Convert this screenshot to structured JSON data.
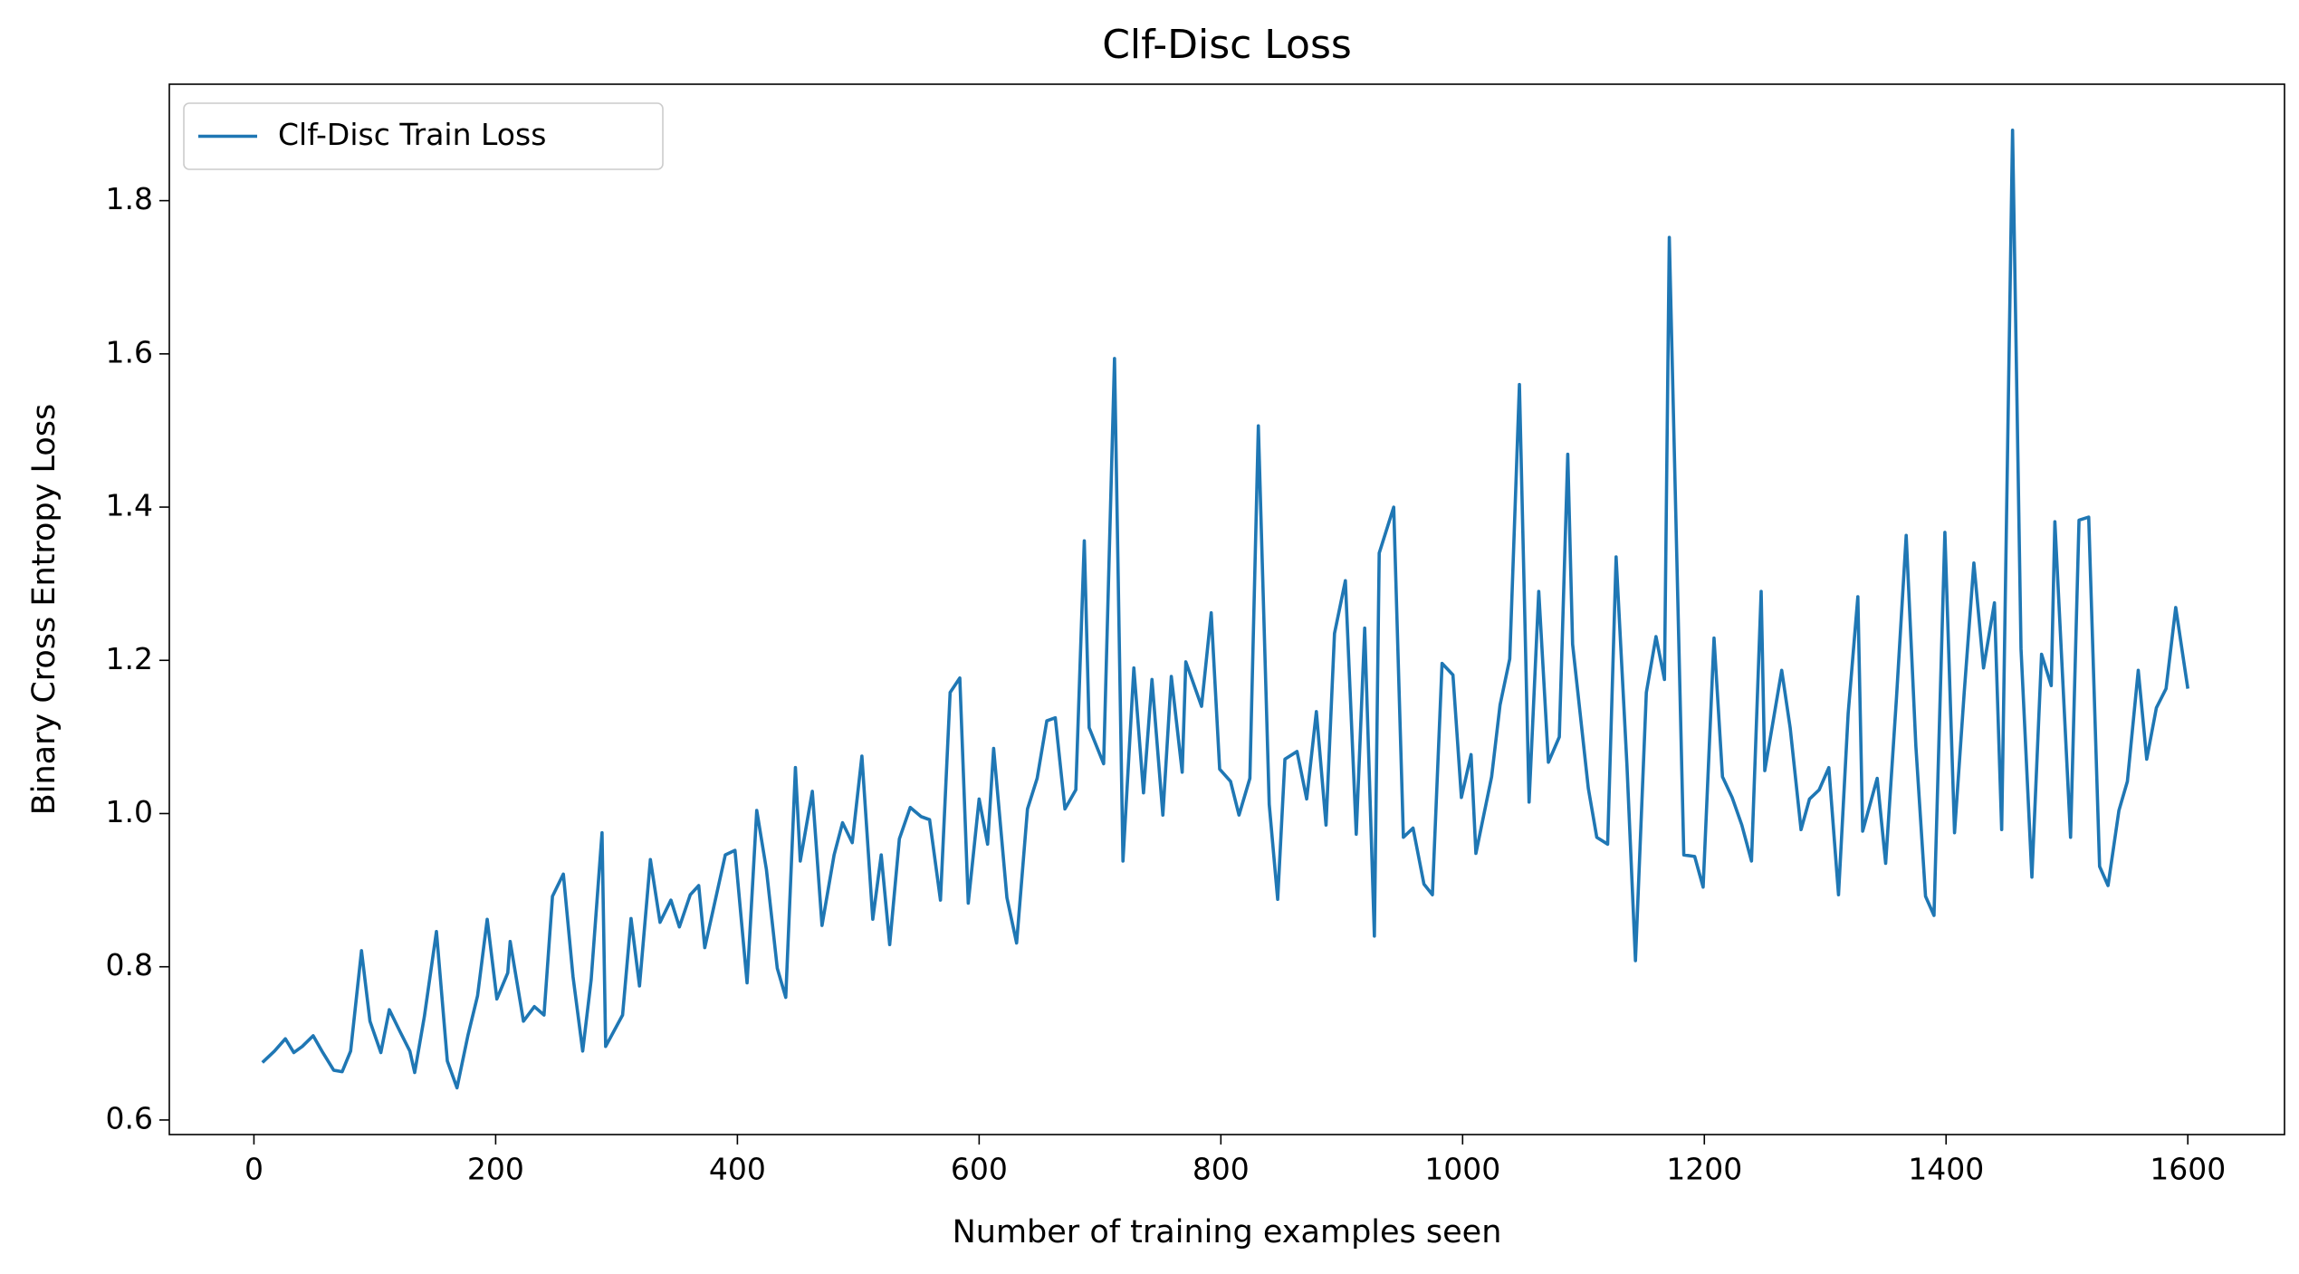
{
  "chart_data": {
    "type": "line",
    "title": "Clf-Disc Loss",
    "x_label": "Number of training examples seen",
    "y_label": "Binary Cross Entropy Loss",
    "x": [
      7,
      17,
      26,
      33,
      40,
      49,
      57,
      66,
      73,
      80,
      89,
      96,
      105,
      112,
      121,
      129,
      133,
      141,
      151,
      160,
      168,
      177,
      185,
      193,
      201,
      210,
      212,
      223,
      232,
      240,
      247,
      256,
      264,
      272,
      279,
      288,
      291,
      305,
      312,
      319,
      328,
      336,
      345,
      352,
      361,
      368,
      373,
      390,
      398,
      408,
      416,
      424,
      433,
      440,
      448,
      452,
      462,
      470,
      480,
      487,
      495,
      503,
      512,
      519,
      526,
      534,
      543,
      552,
      559,
      568,
      576,
      584,
      591,
      600,
      607,
      612,
      623,
      631,
      640,
      648,
      656,
      663,
      671,
      680,
      687,
      691,
      703,
      712,
      719,
      728,
      736,
      743,
      752,
      759,
      768,
      771,
      784,
      792,
      799,
      808,
      815,
      824,
      831,
      840,
      847,
      853,
      863,
      871,
      879,
      887,
      894,
      903,
      912,
      919,
      927,
      931,
      943,
      951,
      959,
      968,
      975,
      983,
      992,
      999,
      1007,
      1011,
      1024,
      1031,
      1039,
      1047,
      1055,
      1063,
      1071,
      1080,
      1087,
      1091,
      1104,
      1111,
      1120,
      1127,
      1136,
      1143,
      1152,
      1160,
      1167,
      1171,
      1183,
      1192,
      1199,
      1208,
      1215,
      1223,
      1231,
      1239,
      1247,
      1250,
      1264,
      1271,
      1280,
      1287,
      1295,
      1303,
      1311,
      1319,
      1327,
      1331,
      1343,
      1350,
      1359,
      1367,
      1375,
      1383,
      1390,
      1399,
      1407,
      1415,
      1423,
      1431,
      1440,
      1446,
      1455,
      1462,
      1471,
      1479,
      1487,
      1490,
      1503,
      1510,
      1518,
      1527,
      1534,
      1543,
      1550,
      1559,
      1566,
      1574,
      1582,
      1590,
      1600
    ],
    "series": [
      {
        "name": "Clf-Disc Train Loss",
        "color": "#1f77b4",
        "values": [
          0.675,
          0.69,
          0.706,
          0.688,
          0.696,
          0.71,
          0.688,
          0.665,
          0.663,
          0.69,
          0.821,
          0.729,
          0.688,
          0.744,
          0.715,
          0.69,
          0.662,
          0.735,
          0.846,
          0.677,
          0.642,
          0.71,
          0.762,
          0.862,
          0.758,
          0.792,
          0.833,
          0.729,
          0.748,
          0.737,
          0.892,
          0.921,
          0.787,
          0.69,
          0.783,
          0.975,
          0.696,
          0.737,
          0.863,
          0.775,
          0.94,
          0.858,
          0.887,
          0.852,
          0.894,
          0.906,
          0.825,
          0.946,
          0.952,
          0.779,
          1.004,
          0.927,
          0.798,
          0.76,
          1.06,
          0.938,
          1.029,
          0.854,
          0.946,
          0.988,
          0.962,
          1.075,
          0.862,
          0.946,
          0.829,
          0.967,
          1.008,
          0.996,
          0.992,
          0.887,
          1.158,
          1.177,
          0.883,
          1.019,
          0.96,
          1.085,
          0.89,
          0.831,
          1.006,
          1.046,
          1.121,
          1.125,
          1.006,
          1.031,
          1.356,
          1.112,
          1.065,
          1.594,
          0.938,
          1.19,
          1.027,
          1.175,
          0.998,
          1.179,
          1.054,
          1.198,
          1.14,
          1.262,
          1.058,
          1.042,
          0.998,
          1.046,
          1.506,
          1.012,
          0.888,
          1.071,
          1.081,
          1.019,
          1.133,
          0.985,
          1.235,
          1.304,
          0.973,
          1.242,
          0.84,
          1.34,
          1.4,
          0.969,
          0.981,
          0.908,
          0.894,
          1.196,
          1.181,
          1.021,
          1.077,
          0.948,
          1.048,
          1.142,
          1.202,
          1.56,
          1.015,
          1.29,
          1.067,
          1.1,
          1.469,
          1.221,
          1.033,
          0.969,
          0.96,
          1.335,
          1.062,
          0.808,
          1.158,
          1.231,
          1.175,
          1.752,
          0.946,
          0.944,
          0.904,
          1.229,
          1.048,
          1.021,
          0.985,
          0.938,
          1.29,
          1.056,
          1.187,
          1.112,
          0.979,
          1.019,
          1.031,
          1.06,
          0.894,
          1.131,
          1.283,
          0.977,
          1.046,
          0.935,
          1.152,
          1.363,
          1.088,
          0.892,
          0.867,
          1.367,
          0.975,
          1.158,
          1.327,
          1.19,
          1.275,
          0.979,
          1.892,
          1.215,
          0.917,
          1.208,
          1.167,
          1.381,
          0.969,
          1.383,
          1.387,
          0.931,
          0.906,
          1.004,
          1.042,
          1.187,
          1.071,
          1.138,
          1.163,
          1.269,
          1.163
        ]
      }
    ],
    "xlim": [
      -70,
      1680
    ],
    "ylim": [
      0.581,
      1.952
    ],
    "xticks": [
      0,
      200,
      400,
      600,
      800,
      1000,
      1200,
      1400,
      1600
    ],
    "yticks": [
      0.6,
      0.8,
      {
        "value": 1,
        "label": "1.0"
      },
      1.2,
      1.4,
      1.6,
      1.8
    ],
    "legend": "upper left",
    "grid": false
  }
}
